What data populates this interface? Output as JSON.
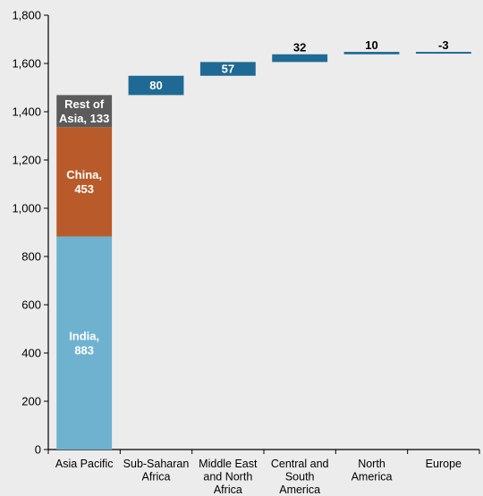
{
  "chart_data": {
    "type": "bar",
    "subtype": "waterfall",
    "ylim": [
      0,
      1800
    ],
    "yticks": [
      0,
      200,
      400,
      600,
      800,
      1000,
      1200,
      1400,
      1600,
      1800
    ],
    "ytick_labels": [
      "0",
      "200",
      "400",
      "600",
      "800",
      "1,000",
      "1,200",
      "1,400",
      "1,600",
      "1,800"
    ],
    "categories": [
      [
        "Asia Pacific"
      ],
      [
        "Sub-Saharan",
        "Africa"
      ],
      [
        "Middle East",
        "and North",
        "Africa"
      ],
      [
        "Central and",
        "South",
        "America"
      ],
      [
        "North",
        "America"
      ],
      [
        "Europe"
      ]
    ],
    "stacked": {
      "category_index": 0,
      "segments": [
        {
          "value": 883,
          "label": [
            "India,",
            "883"
          ],
          "color": "#6fb2d0"
        },
        {
          "value": 453,
          "label": [
            "China,",
            "453"
          ],
          "color": "#b95a2a"
        },
        {
          "value": 133,
          "label": [
            "Rest of",
            "Asia, 133"
          ],
          "color": "#5b5b5b"
        }
      ]
    },
    "increments": [
      {
        "category_index": 1,
        "value": 80,
        "label": "80",
        "color": "#1f6a94",
        "label_position": "inside"
      },
      {
        "category_index": 2,
        "value": 57,
        "label": "57",
        "color": "#1f6a94",
        "label_position": "inside"
      },
      {
        "category_index": 3,
        "value": 32,
        "label": "32",
        "color": "#1f6a94",
        "label_position": "above"
      },
      {
        "category_index": 4,
        "value": 10,
        "label": "10",
        "color": "#1f6a94",
        "label_position": "above"
      },
      {
        "category_index": 5,
        "value": -3,
        "label": "-3",
        "color": "#1f6a94",
        "label_position": "above"
      }
    ],
    "grid": false,
    "legend": "none"
  }
}
